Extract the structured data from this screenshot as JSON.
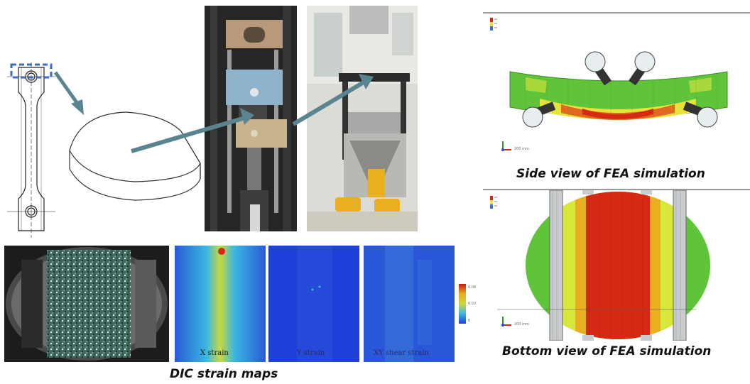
{
  "captions": {
    "side_view": "Side view of FEA simulation",
    "bottom_view": "Bottom view of FEA simulation",
    "dic": "DIC strain maps"
  },
  "strain_maps": [
    {
      "label": "X strain",
      "color": "#3a6ed8"
    },
    {
      "label": "Y strain",
      "color": "#1f3fd9"
    },
    {
      "label": "XY shear strain",
      "color": "#2a56d8"
    }
  ],
  "colorbar": {
    "max": "0.06",
    "mid": "0.02",
    "min": "0"
  },
  "fea": {
    "legend_icon": "color-legend-icon",
    "axis_icon": "axis-triad-icon",
    "side_scale_text": "200 mm",
    "bottom_scale_text": "200 mm"
  },
  "icons": [
    "arrow-icon",
    "axis-triad-icon",
    "color-legend-icon"
  ],
  "colors": {
    "arrow": "#5a8590",
    "fea_green": "#5fc43a",
    "fea_yellow": "#e8e23a",
    "fea_red": "#d42a14",
    "dic_blue": "#1f3fd9",
    "dashed_box": "#3e6bc0"
  }
}
